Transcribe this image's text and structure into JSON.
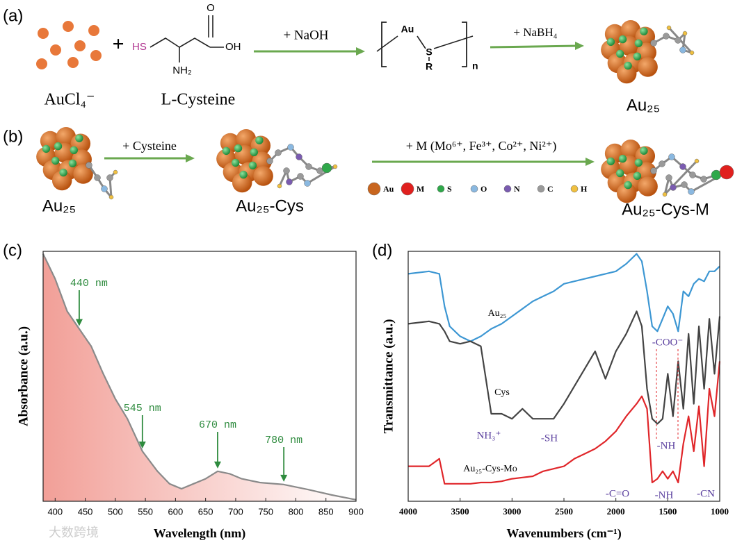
{
  "panel_labels": [
    "(a)",
    "(b)",
    "(c)",
    "(d)"
  ],
  "scheme_a": {
    "reactant1": "AuCl₄⁻",
    "plus": "+",
    "hs": "HS",
    "o": "O",
    "oh": "OH",
    "nh2": "NH₂",
    "reactant2": "L-Cysteine",
    "step1": "+ NaOH",
    "polymer_au": "Au",
    "polymer_s": "S",
    "polymer_r": "R",
    "polymer_n": "n",
    "step2": "+ NaBH₄",
    "product": "Au₂₅"
  },
  "scheme_b": {
    "start": "Au₂₅",
    "step1": "+ Cysteine",
    "middle": "Au₂₅-Cys",
    "step2": "+ M (Mo⁶⁺, Fe³⁺, Co²⁺, Ni²⁺)",
    "product": "Au₂₅-Cys-M",
    "legend": [
      {
        "label": "Au",
        "color": "#c8651e"
      },
      {
        "label": "M",
        "color": "#e0201e"
      },
      {
        "label": "S",
        "color": "#2fa84a"
      },
      {
        "label": "O",
        "color": "#8ab8e0"
      },
      {
        "label": "N",
        "color": "#7a5bb0"
      },
      {
        "label": "C",
        "color": "#9a9a9a"
      },
      {
        "label": "H",
        "color": "#f0c040"
      }
    ]
  },
  "watermark": "大数跨境",
  "chart_data": [
    {
      "type": "line",
      "xlabel": "Wavelength (nm)",
      "ylabel": "Absorbance (a.u.)",
      "fill_color": "#f19a92",
      "x": [
        380,
        400,
        420,
        440,
        460,
        480,
        500,
        520,
        545,
        570,
        590,
        610,
        630,
        650,
        670,
        690,
        710,
        740,
        780,
        820,
        860,
        900
      ],
      "series": [
        {
          "color": "#8a8a8a",
          "values": [
            0.99,
            0.89,
            0.76,
            0.69,
            0.62,
            0.51,
            0.41,
            0.33,
            0.2,
            0.12,
            0.07,
            0.05,
            0.07,
            0.09,
            0.12,
            0.11,
            0.09,
            0.075,
            0.067,
            0.047,
            0.025,
            0.006
          ]
        }
      ],
      "xlim": [
        380,
        900
      ],
      "ylim": [
        0,
        1
      ],
      "xticks": [
        400,
        450,
        500,
        550,
        600,
        650,
        700,
        750,
        800,
        850,
        900
      ],
      "annotations": [
        {
          "value": 440,
          "label": "440 nm"
        },
        {
          "value": 545,
          "label": "545 nm"
        },
        {
          "value": 670,
          "label": "670 nm"
        },
        {
          "value": 780,
          "label": "780 nm"
        }
      ]
    },
    {
      "type": "line",
      "xlabel": "Wavenumbers (cm⁻¹)",
      "ylabel": "Transmittance (a.u.)",
      "x": [
        4000,
        3800,
        3700,
        3650,
        3600,
        3500,
        3400,
        3300,
        3200,
        3100,
        3000,
        2900,
        2800,
        2700,
        2600,
        2500,
        2400,
        2300,
        2200,
        2100,
        2000,
        1900,
        1800,
        1750,
        1700,
        1650,
        1600,
        1550,
        1500,
        1450,
        1400,
        1350,
        1300,
        1250,
        1200,
        1150,
        1100,
        1050,
        1000
      ],
      "series": [
        {
          "name": "Au₂₅",
          "color": "#3d97d3",
          "values": [
            0.91,
            0.92,
            0.91,
            0.78,
            0.7,
            0.66,
            0.64,
            0.66,
            0.69,
            0.71,
            0.74,
            0.77,
            0.8,
            0.82,
            0.84,
            0.87,
            0.88,
            0.89,
            0.9,
            0.91,
            0.92,
            0.95,
            0.99,
            0.96,
            0.84,
            0.7,
            0.68,
            0.73,
            0.78,
            0.75,
            0.68,
            0.84,
            0.82,
            0.87,
            0.89,
            0.88,
            0.92,
            0.92,
            0.94
          ]
        },
        {
          "name": "Cys",
          "color": "#444444",
          "values": [
            0.71,
            0.72,
            0.71,
            0.68,
            0.64,
            0.63,
            0.64,
            0.62,
            0.35,
            0.35,
            0.33,
            0.37,
            0.33,
            0.33,
            0.33,
            0.39,
            0.46,
            0.53,
            0.6,
            0.49,
            0.6,
            0.67,
            0.76,
            0.7,
            0.45,
            0.33,
            0.31,
            0.33,
            0.51,
            0.34,
            0.56,
            0.37,
            0.67,
            0.39,
            0.7,
            0.45,
            0.73,
            0.51,
            0.74
          ]
        },
        {
          "name": "Au₂₅-Cys-Mo",
          "color": "#e0262a",
          "values": [
            0.14,
            0.14,
            0.17,
            0.07,
            0.07,
            0.07,
            0.07,
            0.075,
            0.075,
            0.08,
            0.09,
            0.095,
            0.1,
            0.12,
            0.13,
            0.14,
            0.17,
            0.19,
            0.21,
            0.24,
            0.28,
            0.34,
            0.39,
            0.42,
            0.37,
            0.075,
            0.09,
            0.12,
            0.09,
            0.12,
            0.075,
            0.23,
            0.34,
            0.2,
            0.38,
            0.14,
            0.45,
            0.34,
            0.56
          ]
        }
      ],
      "xlim": [
        4000,
        1000
      ],
      "ylim": [
        0,
        1
      ],
      "xticks": [
        4000,
        3500,
        3000,
        2500,
        2000,
        1500,
        1000
      ],
      "annotations": [
        "NH₃⁺",
        "-SH",
        "-COO⁻",
        "-NH",
        "-C=O",
        "-NH",
        "-CN"
      ]
    }
  ]
}
